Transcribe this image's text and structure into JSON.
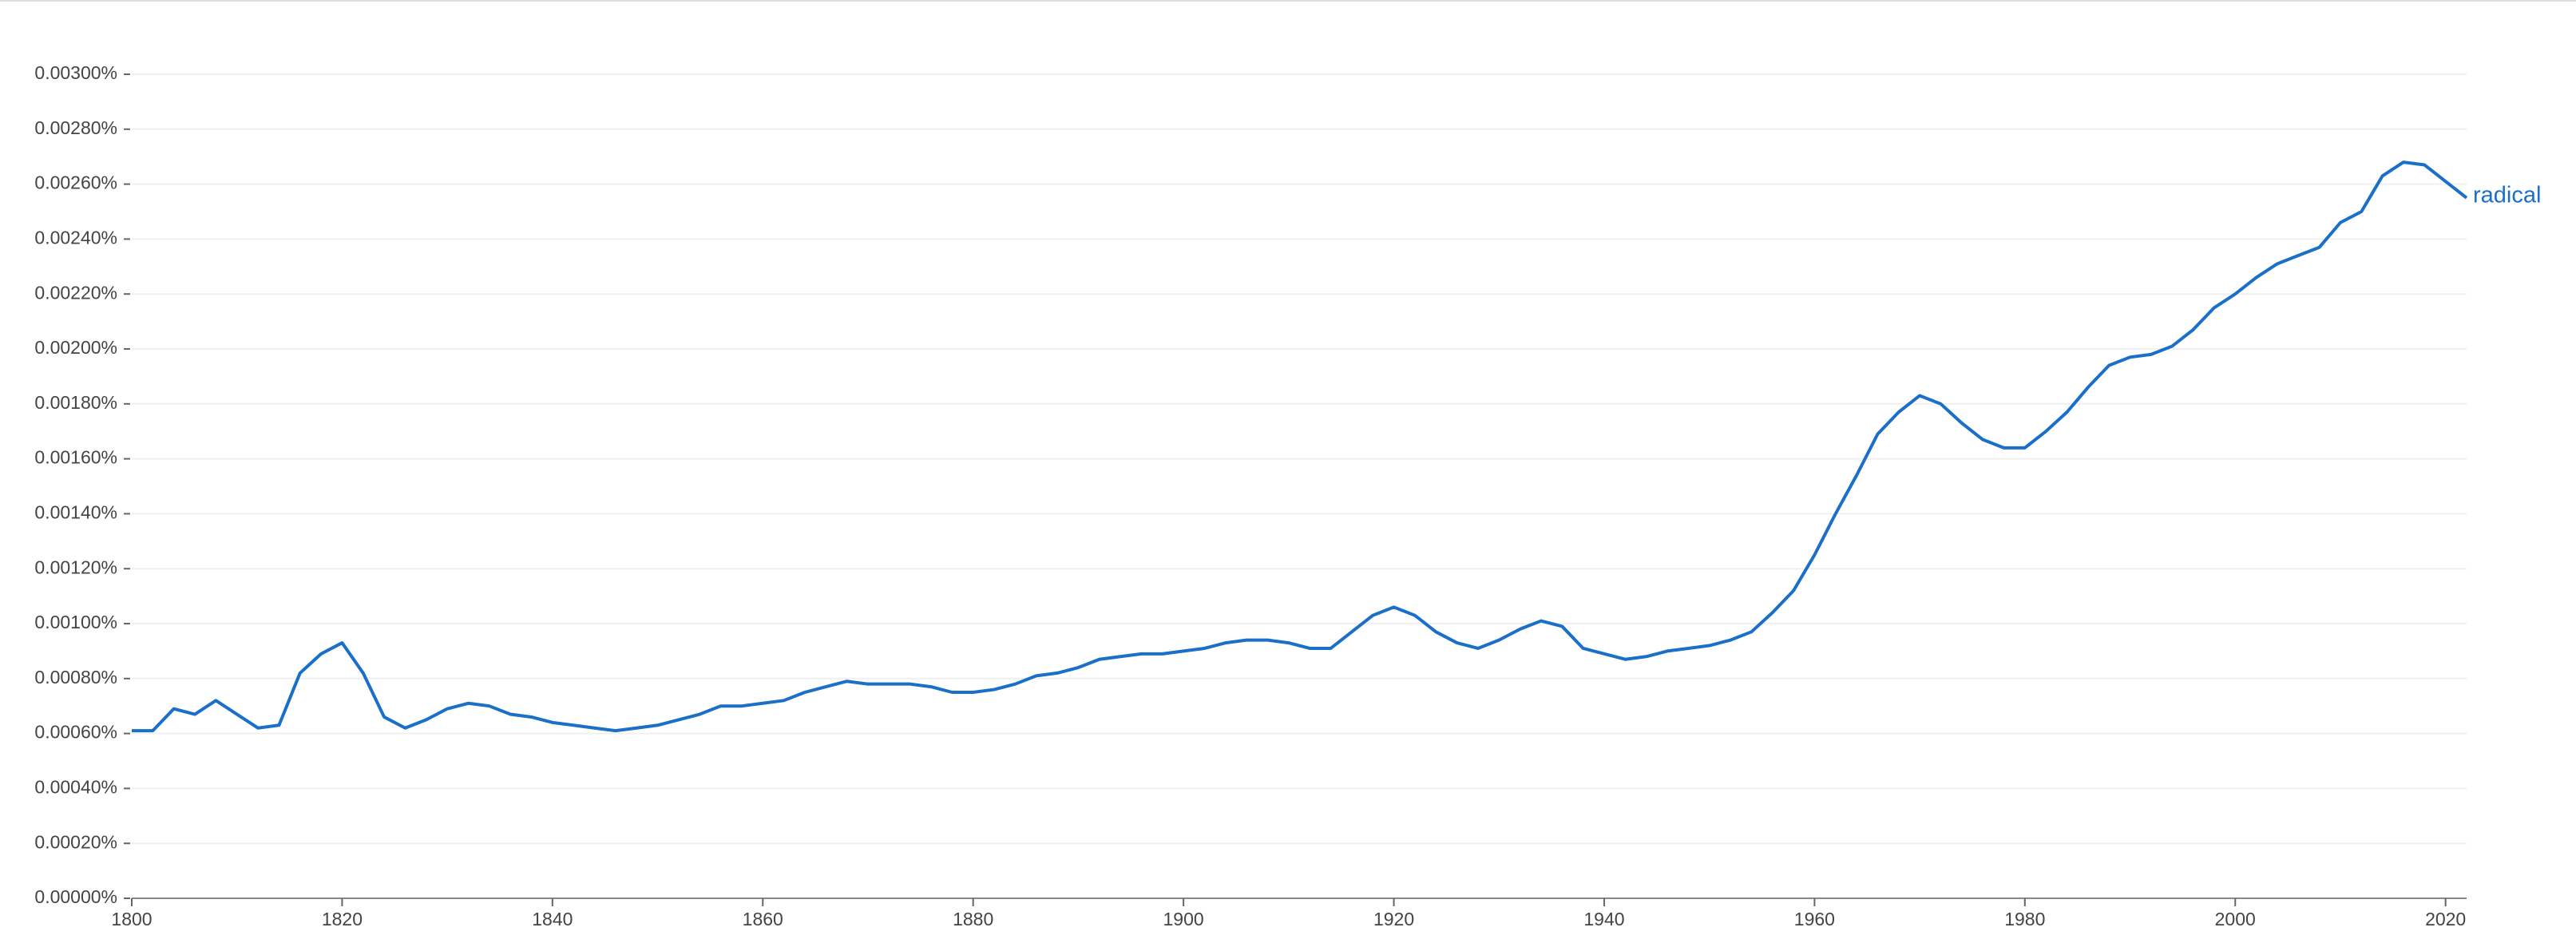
{
  "chart_data": {
    "type": "line",
    "x": [
      1800,
      1802,
      1804,
      1806,
      1808,
      1810,
      1812,
      1814,
      1816,
      1818,
      1820,
      1822,
      1824,
      1826,
      1828,
      1830,
      1832,
      1834,
      1836,
      1838,
      1840,
      1842,
      1844,
      1846,
      1848,
      1850,
      1852,
      1854,
      1856,
      1858,
      1860,
      1862,
      1864,
      1866,
      1868,
      1870,
      1872,
      1874,
      1876,
      1878,
      1880,
      1882,
      1884,
      1886,
      1888,
      1890,
      1892,
      1894,
      1896,
      1898,
      1900,
      1902,
      1904,
      1906,
      1908,
      1910,
      1912,
      1914,
      1916,
      1918,
      1920,
      1922,
      1924,
      1926,
      1928,
      1930,
      1932,
      1934,
      1936,
      1938,
      1940,
      1942,
      1944,
      1946,
      1948,
      1950,
      1952,
      1954,
      1956,
      1958,
      1960,
      1962,
      1964,
      1966,
      1968,
      1970,
      1972,
      1974,
      1976,
      1978,
      1980,
      1982,
      1984,
      1986,
      1988,
      1990,
      1992,
      1994,
      1996,
      1998,
      2000,
      2002,
      2004,
      2006,
      2008,
      2010,
      2012,
      2014,
      2016,
      2018,
      2020,
      2022
    ],
    "series": [
      {
        "name": "radical",
        "color": "#1a6fc9",
        "values": [
          0.00061,
          0.00061,
          0.00069,
          0.00067,
          0.00072,
          0.00067,
          0.00062,
          0.00063,
          0.00082,
          0.00089,
          0.00093,
          0.00082,
          0.00066,
          0.00062,
          0.00065,
          0.00069,
          0.00071,
          0.0007,
          0.00067,
          0.00066,
          0.00064,
          0.00063,
          0.00062,
          0.00061,
          0.00062,
          0.00063,
          0.00065,
          0.00067,
          0.0007,
          0.0007,
          0.00071,
          0.00072,
          0.00075,
          0.00077,
          0.00079,
          0.00078,
          0.00078,
          0.00078,
          0.00077,
          0.00075,
          0.00075,
          0.00076,
          0.00078,
          0.00081,
          0.00082,
          0.00084,
          0.00087,
          0.00088,
          0.00089,
          0.00089,
          0.0009,
          0.00091,
          0.00093,
          0.00094,
          0.00094,
          0.00093,
          0.00091,
          0.00091,
          0.00097,
          0.00103,
          0.00106,
          0.00103,
          0.00097,
          0.00093,
          0.00091,
          0.00094,
          0.00098,
          0.00101,
          0.00099,
          0.00091,
          0.00089,
          0.00087,
          0.00088,
          0.0009,
          0.00091,
          0.00092,
          0.00094,
          0.00097,
          0.00104,
          0.00112,
          0.00125,
          0.0014,
          0.00154,
          0.00169,
          0.00177,
          0.00183,
          0.0018,
          0.00173,
          0.00167,
          0.00164,
          0.00164,
          0.0017,
          0.00177,
          0.00186,
          0.00194,
          0.00197,
          0.00198,
          0.00201,
          0.00207,
          0.00215,
          0.0022,
          0.00226,
          0.00231,
          0.00234,
          0.00237,
          0.00246,
          0.0025,
          0.00263,
          0.00268,
          0.00267,
          0.00261,
          0.00255
        ]
      }
    ],
    "xlim": [
      1800,
      2022
    ],
    "xticks": [
      1800,
      1820,
      1840,
      1860,
      1880,
      1900,
      1920,
      1940,
      1960,
      1980,
      2000,
      2020
    ],
    "ylim": [
      0,
      0.003
    ],
    "yticks": [
      {
        "value": 0,
        "label": "0.00000%"
      },
      {
        "value": 0.0002,
        "label": "0.00020%"
      },
      {
        "value": 0.0004,
        "label": "0.00040%"
      },
      {
        "value": 0.0006,
        "label": "0.00060%"
      },
      {
        "value": 0.0008,
        "label": "0.00080%"
      },
      {
        "value": 0.001,
        "label": "0.00100%"
      },
      {
        "value": 0.0012,
        "label": "0.00120%"
      },
      {
        "value": 0.0014,
        "label": "0.00140%"
      },
      {
        "value": 0.0016,
        "label": "0.00160%"
      },
      {
        "value": 0.0018,
        "label": "0.00180%"
      },
      {
        "value": 0.002,
        "label": "0.00200%"
      },
      {
        "value": 0.0022,
        "label": "0.00220%"
      },
      {
        "value": 0.0024,
        "label": "0.00240%"
      },
      {
        "value": 0.0026,
        "label": "0.00260%"
      },
      {
        "value": 0.0028,
        "label": "0.00280%"
      },
      {
        "value": 0.003,
        "label": "0.00300%"
      }
    ],
    "grid": true
  }
}
